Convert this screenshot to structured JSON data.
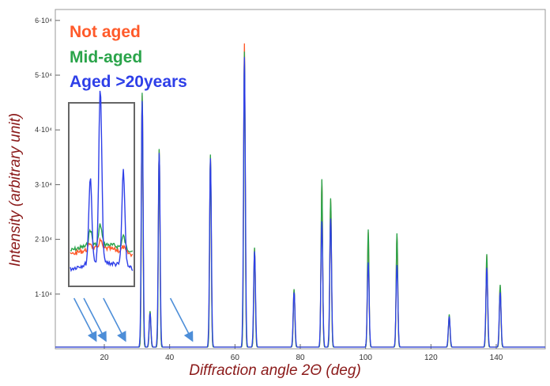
{
  "chart_data": {
    "type": "line",
    "xlabel": "Diffraction angle 2Θ (deg)",
    "ylabel": "Intensity (arbitrary unit)",
    "xlim": [
      5,
      155
    ],
    "ylim": [
      0,
      62000
    ],
    "x_ticks": [
      20,
      40,
      60,
      80,
      100,
      120,
      140
    ],
    "y_ticks": [
      {
        "value": 10000,
        "label": "1·10⁴"
      },
      {
        "value": 20000,
        "label": "2·10⁴"
      },
      {
        "value": 30000,
        "label": "3·10⁴"
      },
      {
        "value": 40000,
        "label": "4·10⁴"
      },
      {
        "value": 50000,
        "label": "5·10⁴"
      },
      {
        "value": 60000,
        "label": "6·10⁴"
      }
    ],
    "baseline": 300,
    "series": [
      {
        "name": "Not aged",
        "color": "#ff5a2a",
        "peaks": [
          [
            31.6,
            46000
          ],
          [
            34.0,
            6500
          ],
          [
            36.8,
            36000
          ],
          [
            52.5,
            35000
          ],
          [
            62.9,
            55500
          ],
          [
            66.0,
            18000
          ],
          [
            78.1,
            10500
          ],
          [
            86.6,
            30500
          ],
          [
            89.3,
            27000
          ],
          [
            100.8,
            21000
          ],
          [
            109.6,
            20500
          ],
          [
            125.6,
            5800
          ],
          [
            137.1,
            16800
          ],
          [
            141.2,
            11200
          ]
        ]
      },
      {
        "name": "Mid-aged",
        "color": "#2aa44a",
        "peaks": [
          [
            31.6,
            46500
          ],
          [
            34.0,
            6600
          ],
          [
            36.8,
            36200
          ],
          [
            52.5,
            35200
          ],
          [
            62.9,
            54000
          ],
          [
            66.0,
            18200
          ],
          [
            78.1,
            10600
          ],
          [
            86.6,
            30700
          ],
          [
            89.3,
            27200
          ],
          [
            100.8,
            21500
          ],
          [
            109.6,
            20800
          ],
          [
            125.6,
            6000
          ],
          [
            137.1,
            17000
          ],
          [
            141.2,
            11400
          ]
        ]
      },
      {
        "name": "Aged >20years",
        "color": "#2e3fe8",
        "peaks": [
          [
            31.6,
            45000
          ],
          [
            34.0,
            6200
          ],
          [
            36.8,
            35500
          ],
          [
            52.5,
            34500
          ],
          [
            62.9,
            53000
          ],
          [
            66.0,
            17500
          ],
          [
            78.1,
            10000
          ],
          [
            86.6,
            23000
          ],
          [
            89.3,
            23500
          ],
          [
            100.8,
            15500
          ],
          [
            109.6,
            15000
          ],
          [
            125.6,
            5600
          ],
          [
            137.1,
            14500
          ],
          [
            141.2,
            10000
          ]
        ]
      }
    ],
    "annotations": {
      "inset": "zoomed view of low-angle region",
      "arrow_targets_deg": [
        17.5,
        20.5,
        26.5,
        47.0
      ]
    },
    "grid": false
  },
  "legend": {
    "item0": "Not aged",
    "item1": "Mid-aged",
    "item2": "Aged >20years"
  }
}
